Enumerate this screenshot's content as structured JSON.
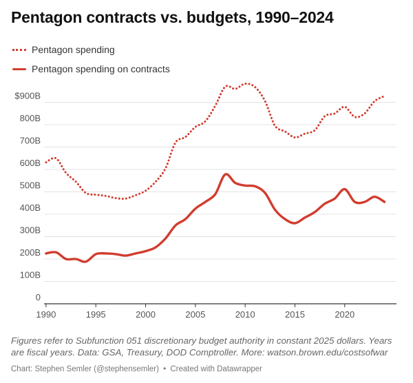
{
  "chart_data": {
    "type": "line",
    "title": "Pentagon contracts vs. budgets, 1990–2024",
    "x": [
      1990,
      1991,
      1992,
      1993,
      1994,
      1995,
      1996,
      1997,
      1998,
      1999,
      2000,
      2001,
      2002,
      2003,
      2004,
      2005,
      2006,
      2007,
      2008,
      2009,
      2010,
      2011,
      2012,
      2013,
      2014,
      2015,
      2016,
      2017,
      2018,
      2019,
      2020,
      2021,
      2022,
      2023,
      2024
    ],
    "series": [
      {
        "name": "Pentagon spending",
        "style": "dotted",
        "color": "#d13c2e",
        "values": [
          632,
          650,
          585,
          545,
          495,
          487,
          482,
          472,
          470,
          485,
          505,
          545,
          605,
          720,
          745,
          790,
          815,
          885,
          970,
          960,
          983,
          968,
          905,
          795,
          770,
          743,
          760,
          775,
          838,
          850,
          880,
          835,
          850,
          905,
          928
        ]
      },
      {
        "name": "Pentagon spending on contracts",
        "style": "solid",
        "color": "#d13c2e",
        "values": [
          225,
          230,
          200,
          200,
          188,
          222,
          225,
          222,
          215,
          225,
          235,
          252,
          292,
          350,
          378,
          425,
          455,
          490,
          578,
          540,
          528,
          525,
          495,
          420,
          378,
          360,
          385,
          410,
          447,
          470,
          512,
          455,
          455,
          478,
          455
        ]
      }
    ],
    "ylim": [
      0,
      1000
    ],
    "yticks": [
      0,
      100,
      200,
      300,
      400,
      500,
      600,
      700,
      800,
      900
    ],
    "ytick_labels": [
      "0",
      "100B",
      "200B",
      "300B",
      "400B",
      "500B",
      "600B",
      "700B",
      "800B",
      "900B"
    ],
    "first_ytick_prefix": "$",
    "xticks": [
      1990,
      1995,
      2000,
      2005,
      2010,
      2015,
      2020
    ],
    "xtick_labels": [
      "1990",
      "1995",
      "2000",
      "2005",
      "2010",
      "2015",
      "2020"
    ],
    "xlim": [
      1989.8,
      2025.2
    ],
    "xlabel": "",
    "ylabel": "",
    "grid": true,
    "legend_position": "top-left"
  },
  "notes": "Figures refer to Subfunction 051 discretionary budget authority in constant 2025 dollars. Years are fiscal years. Data: GSA, Treasury, DOD Comptroller. More: watson.brown.edu/costsofwar",
  "credit": {
    "author": "Chart: Stephen Semler (@stephensemler)",
    "separator": "•",
    "tool": "Created with Datawrapper"
  },
  "colors": {
    "accent": "#d13c2e",
    "grid": "#e3e3e3",
    "axis": "#333333"
  }
}
